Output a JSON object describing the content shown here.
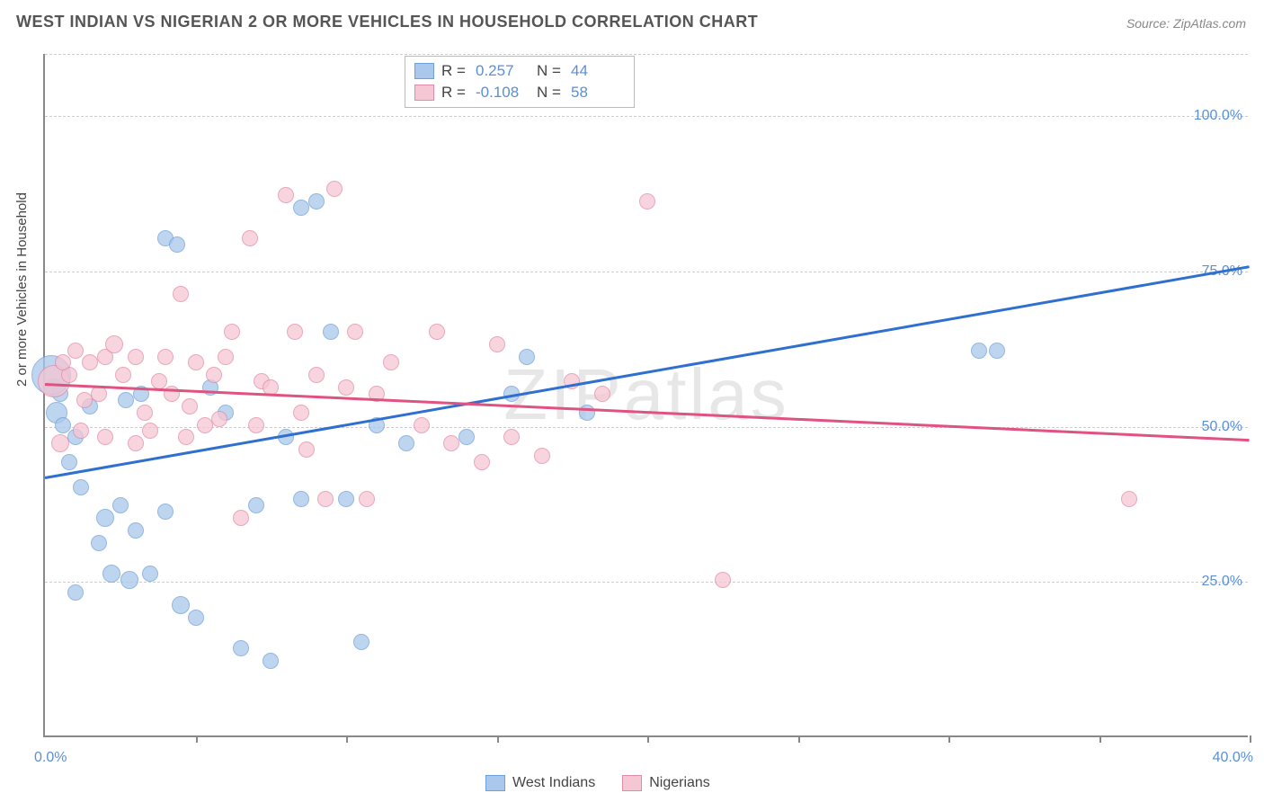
{
  "title": "WEST INDIAN VS NIGERIAN 2 OR MORE VEHICLES IN HOUSEHOLD CORRELATION CHART",
  "source_label": "Source: ZipAtlas.com",
  "watermark": "ZIPatlas",
  "yaxis_label": "2 or more Vehicles in Household",
  "chart": {
    "type": "scatter",
    "xlim": [
      0,
      40
    ],
    "ylim": [
      0,
      110
    ],
    "x_tick_positions": [
      0,
      5,
      10,
      15,
      20,
      25,
      30,
      35,
      40
    ],
    "y_gridlines": [
      25,
      50,
      75,
      100
    ],
    "y_tick_labels": [
      "25.0%",
      "50.0%",
      "75.0%",
      "100.0%"
    ],
    "x_min_label": "0.0%",
    "x_max_label": "40.0%",
    "background_color": "#ffffff",
    "grid_color": "#cccccc",
    "axis_color": "#888888",
    "series": [
      {
        "name": "West Indians",
        "color_fill": "#a9c8ec",
        "color_stroke": "#6f9fd8",
        "R": "0.257",
        "N": "44",
        "trend": {
          "x1": 0,
          "y1": 42,
          "x2": 40,
          "y2": 76,
          "color": "#2e6fd0",
          "width": 3
        },
        "points": [
          {
            "x": 0.3,
            "y": 56,
            "r": 10
          },
          {
            "x": 0.4,
            "y": 52,
            "r": 12
          },
          {
            "x": 0.5,
            "y": 55,
            "r": 9
          },
          {
            "x": 0.6,
            "y": 50,
            "r": 9
          },
          {
            "x": 0.2,
            "y": 58,
            "r": 22
          },
          {
            "x": 1.0,
            "y": 48,
            "r": 9
          },
          {
            "x": 0.8,
            "y": 44,
            "r": 9
          },
          {
            "x": 1.2,
            "y": 40,
            "r": 9
          },
          {
            "x": 1.5,
            "y": 53,
            "r": 9
          },
          {
            "x": 1.0,
            "y": 23,
            "r": 9
          },
          {
            "x": 2.0,
            "y": 35,
            "r": 10
          },
          {
            "x": 2.5,
            "y": 37,
            "r": 9
          },
          {
            "x": 2.2,
            "y": 26,
            "r": 10
          },
          {
            "x": 2.8,
            "y": 25,
            "r": 10
          },
          {
            "x": 3.0,
            "y": 33,
            "r": 9
          },
          {
            "x": 3.5,
            "y": 26,
            "r": 9
          },
          {
            "x": 4.0,
            "y": 80,
            "r": 9
          },
          {
            "x": 4.4,
            "y": 79,
            "r": 9
          },
          {
            "x": 4.0,
            "y": 36,
            "r": 9
          },
          {
            "x": 4.5,
            "y": 21,
            "r": 10
          },
          {
            "x": 5.0,
            "y": 19,
            "r": 9
          },
          {
            "x": 5.5,
            "y": 56,
            "r": 9
          },
          {
            "x": 6.0,
            "y": 52,
            "r": 9
          },
          {
            "x": 6.5,
            "y": 14,
            "r": 9
          },
          {
            "x": 7.0,
            "y": 37,
            "r": 9
          },
          {
            "x": 7.5,
            "y": 12,
            "r": 9
          },
          {
            "x": 8.0,
            "y": 48,
            "r": 9
          },
          {
            "x": 8.5,
            "y": 38,
            "r": 9
          },
          {
            "x": 9.0,
            "y": 86,
            "r": 9
          },
          {
            "x": 8.5,
            "y": 85,
            "r": 9
          },
          {
            "x": 9.5,
            "y": 65,
            "r": 9
          },
          {
            "x": 10.0,
            "y": 38,
            "r": 9
          },
          {
            "x": 10.5,
            "y": 15,
            "r": 9
          },
          {
            "x": 11.0,
            "y": 50,
            "r": 9
          },
          {
            "x": 12.0,
            "y": 47,
            "r": 9
          },
          {
            "x": 14.0,
            "y": 48,
            "r": 9
          },
          {
            "x": 15.5,
            "y": 55,
            "r": 9
          },
          {
            "x": 16.0,
            "y": 61,
            "r": 9
          },
          {
            "x": 18.0,
            "y": 52,
            "r": 9
          },
          {
            "x": 31.0,
            "y": 62,
            "r": 9
          },
          {
            "x": 31.6,
            "y": 62,
            "r": 9
          },
          {
            "x": 1.8,
            "y": 31,
            "r": 9
          },
          {
            "x": 3.2,
            "y": 55,
            "r": 9
          },
          {
            "x": 2.7,
            "y": 54,
            "r": 9
          }
        ]
      },
      {
        "name": "Nigerians",
        "color_fill": "#f5c6d3",
        "color_stroke": "#e28ba6",
        "R": "-0.108",
        "N": "58",
        "trend": {
          "x1": 0,
          "y1": 57,
          "x2": 40,
          "y2": 48,
          "color": "#e0527f",
          "width": 2.5
        },
        "points": [
          {
            "x": 0.3,
            "y": 57,
            "r": 18
          },
          {
            "x": 0.5,
            "y": 47,
            "r": 10
          },
          {
            "x": 0.8,
            "y": 58,
            "r": 9
          },
          {
            "x": 1.0,
            "y": 62,
            "r": 9
          },
          {
            "x": 1.2,
            "y": 49,
            "r": 9
          },
          {
            "x": 1.5,
            "y": 60,
            "r": 9
          },
          {
            "x": 1.8,
            "y": 55,
            "r": 9
          },
          {
            "x": 2.0,
            "y": 61,
            "r": 9
          },
          {
            "x": 2.3,
            "y": 63,
            "r": 10
          },
          {
            "x": 2.6,
            "y": 58,
            "r": 9
          },
          {
            "x": 3.0,
            "y": 61,
            "r": 9
          },
          {
            "x": 3.3,
            "y": 52,
            "r": 9
          },
          {
            "x": 3.5,
            "y": 49,
            "r": 9
          },
          {
            "x": 3.8,
            "y": 57,
            "r": 9
          },
          {
            "x": 4.0,
            "y": 61,
            "r": 9
          },
          {
            "x": 4.2,
            "y": 55,
            "r": 9
          },
          {
            "x": 4.5,
            "y": 71,
            "r": 9
          },
          {
            "x": 4.8,
            "y": 53,
            "r": 9
          },
          {
            "x": 5.0,
            "y": 60,
            "r": 9
          },
          {
            "x": 5.3,
            "y": 50,
            "r": 9
          },
          {
            "x": 5.6,
            "y": 58,
            "r": 9
          },
          {
            "x": 6.0,
            "y": 61,
            "r": 9
          },
          {
            "x": 6.2,
            "y": 65,
            "r": 9
          },
          {
            "x": 6.5,
            "y": 35,
            "r": 9
          },
          {
            "x": 6.8,
            "y": 80,
            "r": 9
          },
          {
            "x": 7.2,
            "y": 57,
            "r": 9
          },
          {
            "x": 7.5,
            "y": 56,
            "r": 9
          },
          {
            "x": 8.0,
            "y": 87,
            "r": 9
          },
          {
            "x": 8.3,
            "y": 65,
            "r": 9
          },
          {
            "x": 8.7,
            "y": 46,
            "r": 9
          },
          {
            "x": 9.0,
            "y": 58,
            "r": 9
          },
          {
            "x": 9.3,
            "y": 38,
            "r": 9
          },
          {
            "x": 9.6,
            "y": 88,
            "r": 9
          },
          {
            "x": 10.0,
            "y": 56,
            "r": 9
          },
          {
            "x": 10.3,
            "y": 65,
            "r": 9
          },
          {
            "x": 10.7,
            "y": 38,
            "r": 9
          },
          {
            "x": 11.0,
            "y": 55,
            "r": 9
          },
          {
            "x": 11.5,
            "y": 60,
            "r": 9
          },
          {
            "x": 12.5,
            "y": 50,
            "r": 9
          },
          {
            "x": 13.0,
            "y": 65,
            "r": 9
          },
          {
            "x": 13.5,
            "y": 47,
            "r": 9
          },
          {
            "x": 14.5,
            "y": 44,
            "r": 9
          },
          {
            "x": 15.0,
            "y": 63,
            "r": 9
          },
          {
            "x": 15.5,
            "y": 48,
            "r": 9
          },
          {
            "x": 16.5,
            "y": 45,
            "r": 9
          },
          {
            "x": 17.5,
            "y": 57,
            "r": 9
          },
          {
            "x": 18.5,
            "y": 55,
            "r": 9
          },
          {
            "x": 20.0,
            "y": 86,
            "r": 9
          },
          {
            "x": 22.5,
            "y": 25,
            "r": 9
          },
          {
            "x": 36.0,
            "y": 38,
            "r": 9
          },
          {
            "x": 2.0,
            "y": 48,
            "r": 9
          },
          {
            "x": 3.0,
            "y": 47,
            "r": 9
          },
          {
            "x": 4.7,
            "y": 48,
            "r": 9
          },
          {
            "x": 5.8,
            "y": 51,
            "r": 9
          },
          {
            "x": 7.0,
            "y": 50,
            "r": 9
          },
          {
            "x": 8.5,
            "y": 52,
            "r": 9
          },
          {
            "x": 1.3,
            "y": 54,
            "r": 9
          },
          {
            "x": 0.6,
            "y": 60,
            "r": 9
          }
        ]
      }
    ]
  },
  "legend_top": {
    "r_label": "R =",
    "n_label": "N ="
  },
  "legend_bottom": {
    "series1": "West Indians",
    "series2": "Nigerians"
  }
}
